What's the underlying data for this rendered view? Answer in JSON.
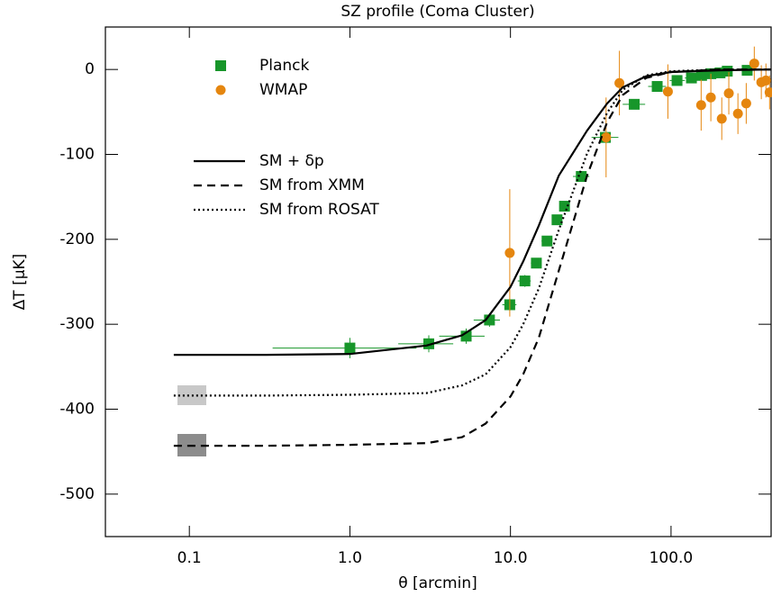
{
  "chart_data": {
    "type": "line",
    "title": "SZ profile (Coma Cluster)",
    "xlabel": "θ [arcmin]",
    "ylabel": "ΔT [μK]",
    "xscale": "log",
    "xlim": [
      0.03,
      420
    ],
    "ylim": [
      -550,
      50
    ],
    "xticks": [
      0.1,
      {
        "value": 1,
        "label": "1.0"
      },
      {
        "value": 10,
        "label": "10.0"
      },
      {
        "value": 100,
        "label": "100.0"
      }
    ],
    "yticks": [
      0,
      -100,
      -200,
      -300,
      -400,
      -500
    ],
    "series": [
      {
        "name": "Planck",
        "color": "#17962a",
        "marker": "square",
        "x": [
          1.0,
          3.1,
          5.3,
          7.4,
          9.9,
          12.3,
          14.5,
          16.9,
          19.5,
          21.7,
          27.6,
          39,
          59,
          82,
          109,
          134,
          155,
          177,
          202,
          224,
          298
        ],
        "values": [
          -328,
          -323,
          -314,
          -295,
          -277,
          -249,
          -228,
          -202,
          -177,
          -161,
          -126,
          -80,
          -41,
          -20,
          -13,
          -10,
          -7,
          -5,
          -4,
          -2,
          -1
        ],
        "yerr": [
          12,
          10,
          9,
          8,
          7,
          7,
          6,
          6,
          6,
          5,
          5,
          5,
          5,
          5,
          4,
          4,
          4,
          4,
          4,
          4,
          4
        ],
        "xmin": [
          0.33,
          2.0,
          3.6,
          5.9,
          8.9,
          11.1,
          13.4,
          15.6,
          18.2,
          20.3,
          24.5,
          32,
          50,
          72,
          98,
          122,
          143,
          165,
          189,
          212,
          280
        ],
        "xmax": [
          2.6,
          4.4,
          6.9,
          8.6,
          10.9,
          13.4,
          15.6,
          18.2,
          20.9,
          23.2,
          31,
          47,
          69,
          93,
          122,
          146,
          167,
          190,
          215,
          237,
          316
        ]
      },
      {
        "name": "WMAP",
        "color": "#e5860f",
        "marker": "circle",
        "x": [
          9.9,
          39.4,
          47.7,
          95.6,
          154,
          177,
          207,
          229,
          261,
          294,
          330,
          365,
          390,
          411
        ],
        "values": [
          -216,
          -80,
          -16,
          -26,
          -42,
          -33,
          -58,
          -28,
          -52,
          -40,
          7,
          -15,
          -13,
          -27
        ],
        "yerr": [
          75,
          47,
          38,
          32,
          30,
          28,
          25,
          25,
          24,
          24,
          20,
          20,
          20,
          20
        ]
      },
      {
        "name": "SM + δp",
        "color": "#000000",
        "dash": "solid",
        "x": [
          0.08,
          0.3,
          1,
          3,
          5,
          7,
          10,
          12,
          15,
          20,
          30,
          40,
          50,
          70,
          100,
          200,
          420
        ],
        "values": [
          -336,
          -336,
          -335,
          -325,
          -313,
          -295,
          -256,
          -226,
          -184,
          -125,
          -72,
          -40,
          -21,
          -8,
          -3,
          -1,
          0
        ]
      },
      {
        "name": "SM from XMM",
        "color": "#000000",
        "dash": "dashed",
        "x": [
          0.08,
          0.3,
          1,
          3,
          5,
          7,
          10,
          12,
          15,
          20,
          30,
          40,
          50,
          70,
          100,
          200,
          420
        ],
        "values": [
          -443,
          -443,
          -442,
          -440,
          -433,
          -417,
          -385,
          -359,
          -316,
          -237,
          -125,
          -62,
          -30,
          -10,
          -3,
          0,
          0
        ]
      },
      {
        "name": "SM from ROSAT",
        "color": "#000000",
        "dash": "dotted",
        "x": [
          0.08,
          0.3,
          1,
          3,
          5,
          7,
          10,
          12,
          15,
          20,
          30,
          40,
          50,
          70,
          100,
          200,
          420
        ],
        "values": [
          -384,
          -384,
          -383,
          -381,
          -372,
          -359,
          -327,
          -300,
          -258,
          -189,
          -99,
          -51,
          -24,
          -7,
          -2,
          0,
          0
        ]
      }
    ]
  }
}
